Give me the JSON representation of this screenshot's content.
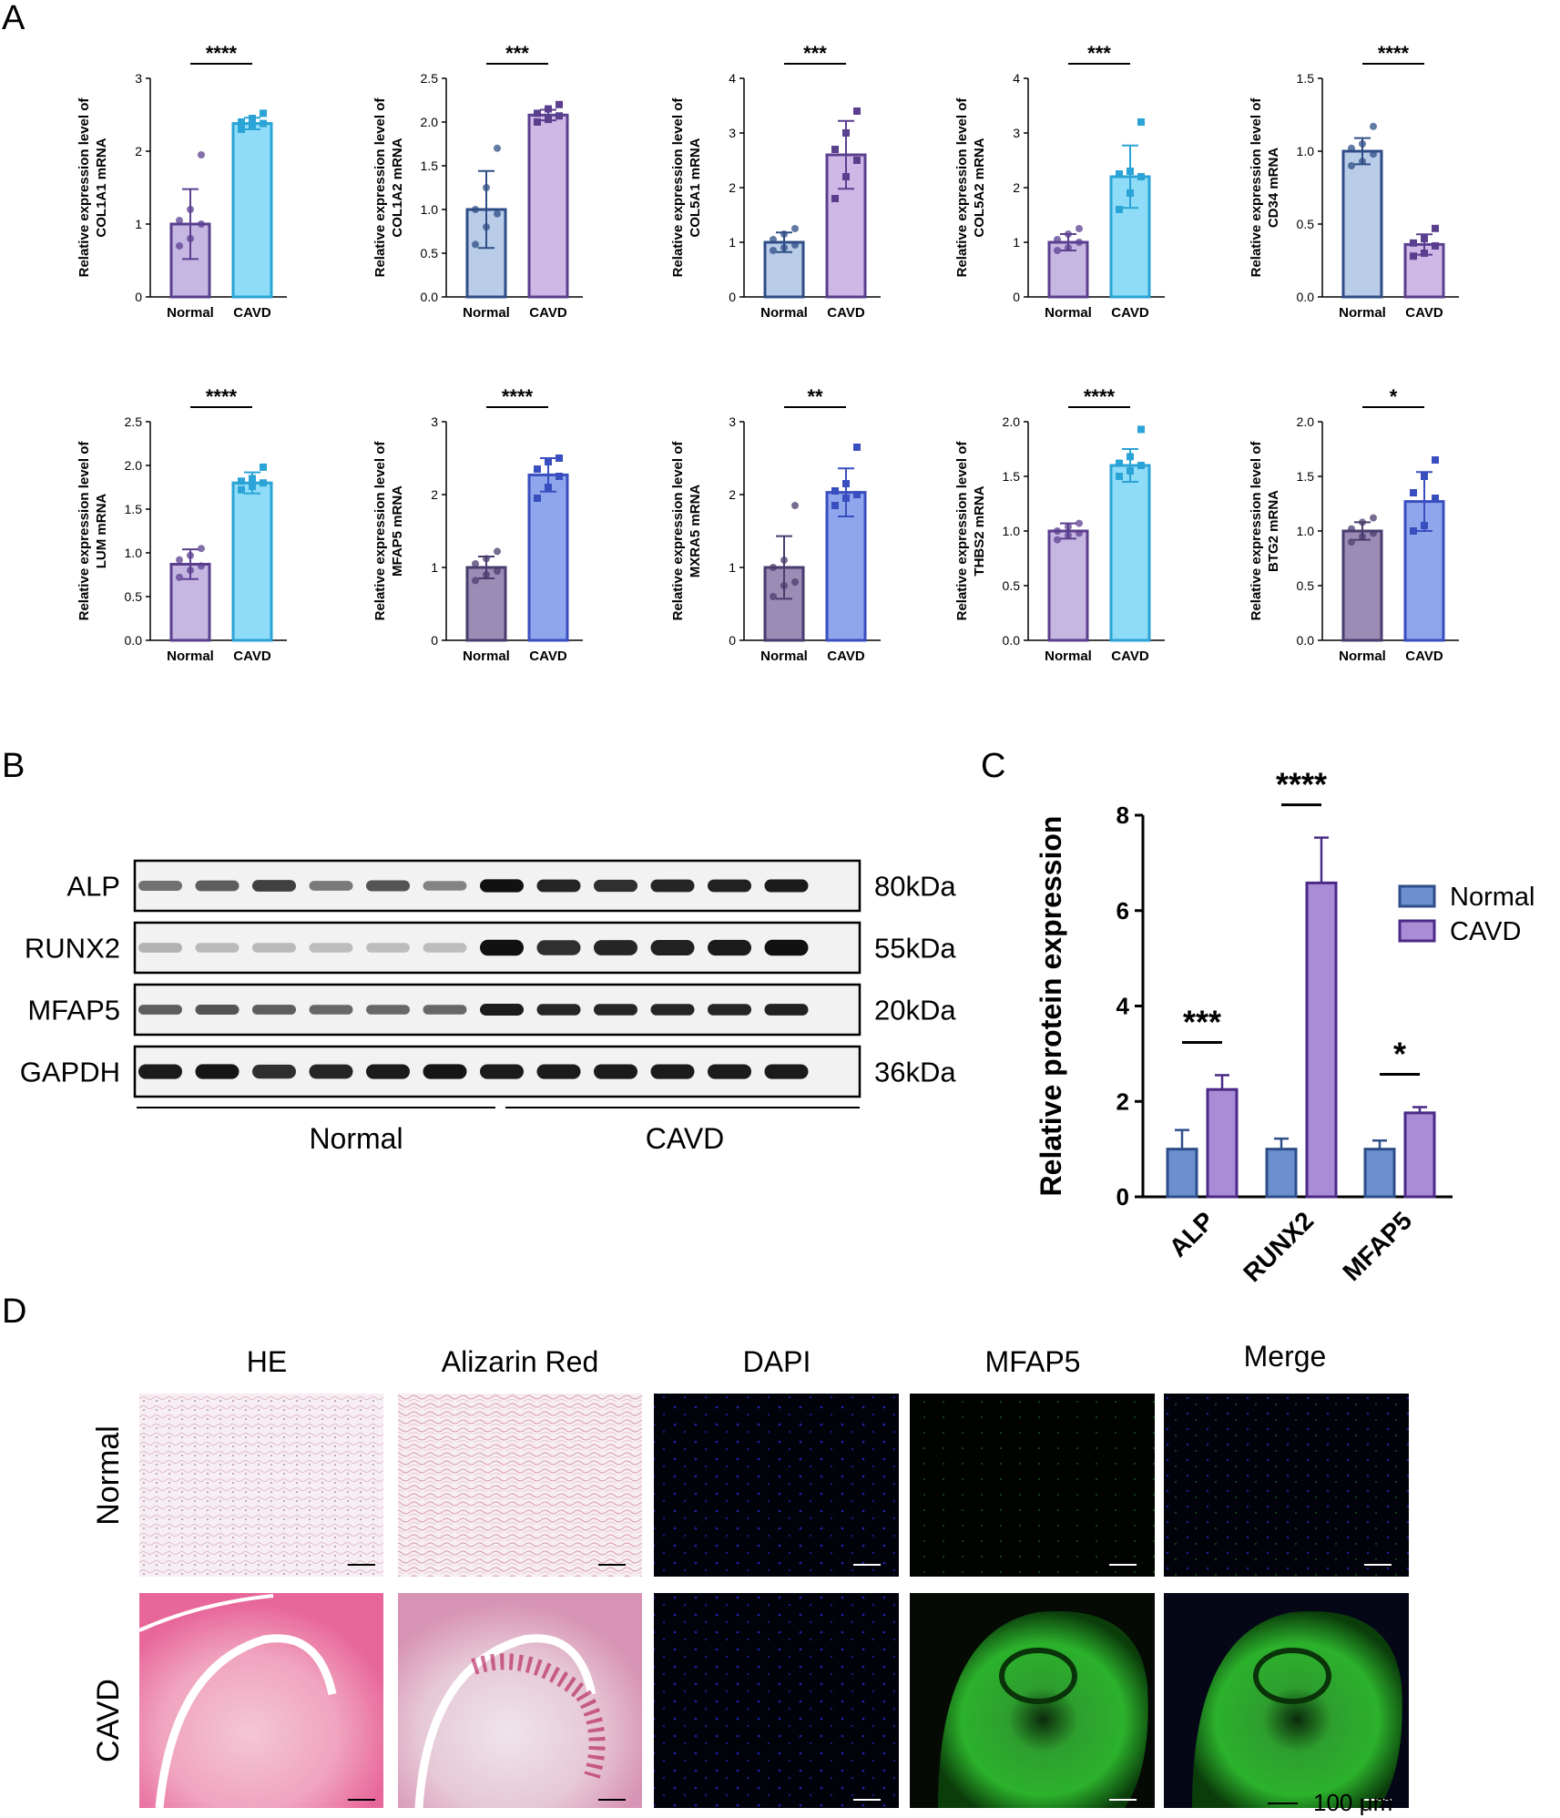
{
  "panels": {
    "A": "A",
    "B": "B",
    "C": "C",
    "D": "D"
  },
  "colors": {
    "normal_purple_fill": "#c6b7e2",
    "normal_purple_edge": "#5b3f8f",
    "normal_blue_fill": "#b9cce8",
    "normal_blue_edge": "#2f4d86",
    "normal_mauve_fill": "#9a8cb5",
    "normal_mauve_edge": "#4a3c6e",
    "cavd_cyan_fill": "#8fdcf8",
    "cavd_cyan_edge": "#2aa3d6",
    "cavd_lilac_fill": "#cdb8e6",
    "cavd_lilac_edge": "#5b3f8f",
    "cavd_periwinkle_fill": "#8fa5ec",
    "cavd_periwinkle_edge": "#3a4fbf",
    "bar_c_normal": "#6b8fcf",
    "bar_c_cavd": "#a98bd6",
    "green_stain": "#2fae2f",
    "he_pink": "#e65a8c",
    "dapi_blue": "#1b1fa8"
  },
  "chart_data": [
    {
      "type": "bar",
      "ylabel_line1": "Relative expression level of",
      "ylabel_line2": "COL1A1 mRNA",
      "ylim": [
        0,
        3
      ],
      "ticks": [
        "0",
        "1",
        "2",
        "3"
      ],
      "categories": [
        "Normal",
        "CAVD"
      ],
      "values": [
        1.0,
        2.38
      ],
      "errors": [
        0.48,
        0.08
      ],
      "significance": "****",
      "points": [
        [
          0.7,
          0.8,
          1.0,
          1.05,
          1.2,
          1.95
        ],
        [
          2.3,
          2.35,
          2.38,
          2.4,
          2.45,
          2.52
        ]
      ],
      "style": [
        "normal_purple",
        "cavd_cyan"
      ]
    },
    {
      "type": "bar",
      "ylabel_line1": "Relative expression level of",
      "ylabel_line2": "COL1A2 mRNA",
      "ylim": [
        0,
        2.5
      ],
      "ticks": [
        "0.0",
        "0.5",
        "1.0",
        "1.5",
        "2.0",
        "2.5"
      ],
      "categories": [
        "Normal",
        "CAVD"
      ],
      "values": [
        1.0,
        2.08
      ],
      "errors": [
        0.44,
        0.06
      ],
      "significance": "***",
      "points": [
        [
          0.6,
          0.8,
          0.95,
          1.0,
          1.25,
          1.7
        ],
        [
          2.0,
          2.03,
          2.07,
          2.1,
          2.15,
          2.2
        ]
      ],
      "style": [
        "normal_blue",
        "cavd_lilac"
      ]
    },
    {
      "type": "bar",
      "ylabel_line1": "Relative expression level of",
      "ylabel_line2": "COL5A1 mRNA",
      "ylim": [
        0,
        4
      ],
      "ticks": [
        "0",
        "1",
        "2",
        "3",
        "4"
      ],
      "categories": [
        "Normal",
        "CAVD"
      ],
      "values": [
        1.0,
        2.6
      ],
      "errors": [
        0.18,
        0.62
      ],
      "significance": "***",
      "points": [
        [
          0.85,
          0.9,
          0.95,
          1.05,
          1.15,
          1.25
        ],
        [
          1.8,
          2.2,
          2.5,
          2.7,
          3.0,
          3.4
        ]
      ],
      "style": [
        "normal_blue",
        "cavd_lilac"
      ]
    },
    {
      "type": "bar",
      "ylabel_line1": "Relative expression level of",
      "ylabel_line2": "COL5A2 mRNA",
      "ylim": [
        0,
        4
      ],
      "ticks": [
        "0",
        "1",
        "2",
        "3",
        "4"
      ],
      "categories": [
        "Normal",
        "CAVD"
      ],
      "values": [
        1.0,
        2.2
      ],
      "errors": [
        0.15,
        0.57
      ],
      "significance": "***",
      "points": [
        [
          0.85,
          0.9,
          1.0,
          1.05,
          1.15,
          1.25
        ],
        [
          1.6,
          1.9,
          2.2,
          2.25,
          2.3,
          3.2
        ]
      ],
      "style": [
        "normal_purple",
        "cavd_cyan"
      ]
    },
    {
      "type": "bar",
      "ylabel_line1": "Relative expression level of",
      "ylabel_line2": "CD34 mRNA",
      "ylim": [
        0,
        1.5
      ],
      "ticks": [
        "0.0",
        "0.5",
        "1.0",
        "1.5"
      ],
      "categories": [
        "Normal",
        "CAVD"
      ],
      "values": [
        1.0,
        0.36
      ],
      "errors": [
        0.09,
        0.07
      ],
      "significance": "****",
      "points": [
        [
          0.9,
          0.93,
          0.98,
          1.02,
          1.05,
          1.17
        ],
        [
          0.28,
          0.3,
          0.35,
          0.37,
          0.4,
          0.47
        ]
      ],
      "style": [
        "normal_blue",
        "cavd_lilac"
      ]
    },
    {
      "type": "bar",
      "ylabel_line1": "Relative expression level of",
      "ylabel_line2": "LUM mRNA",
      "ylim": [
        0,
        2.5
      ],
      "ticks": [
        "0.0",
        "0.5",
        "1.0",
        "1.5",
        "2.0",
        "2.5"
      ],
      "categories": [
        "Normal",
        "CAVD"
      ],
      "values": [
        0.87,
        1.8
      ],
      "errors": [
        0.17,
        0.12
      ],
      "significance": "****",
      "points": [
        [
          0.72,
          0.8,
          0.85,
          0.92,
          0.97,
          1.05
        ],
        [
          1.72,
          1.76,
          1.8,
          1.82,
          1.85,
          1.98
        ]
      ],
      "style": [
        "normal_purple",
        "cavd_cyan"
      ]
    },
    {
      "type": "bar",
      "ylabel_line1": "Relative expression level of",
      "ylabel_line2": "MFAP5 mRNA",
      "ylim": [
        0,
        3
      ],
      "ticks": [
        "0",
        "1",
        "2",
        "3"
      ],
      "categories": [
        "Normal",
        "CAVD"
      ],
      "values": [
        1.0,
        2.27
      ],
      "errors": [
        0.15,
        0.23
      ],
      "significance": "****",
      "points": [
        [
          0.82,
          0.9,
          0.95,
          1.05,
          1.12,
          1.22
        ],
        [
          1.95,
          2.1,
          2.25,
          2.35,
          2.45,
          2.5
        ]
      ],
      "style": [
        "normal_mauve",
        "cavd_periwinkle"
      ]
    },
    {
      "type": "bar",
      "ylabel_line1": "Relative expression level of",
      "ylabel_line2": "MXRA5 mRNA",
      "ylim": [
        0,
        3
      ],
      "ticks": [
        "0",
        "1",
        "2",
        "3"
      ],
      "categories": [
        "Normal",
        "CAVD"
      ],
      "values": [
        1.0,
        2.03
      ],
      "errors": [
        0.43,
        0.33
      ],
      "significance": "**",
      "points": [
        [
          0.6,
          0.75,
          0.8,
          1.0,
          1.1,
          1.85
        ],
        [
          1.85,
          1.95,
          2.0,
          2.05,
          2.15,
          2.65
        ]
      ],
      "style": [
        "normal_mauve",
        "cavd_periwinkle"
      ]
    },
    {
      "type": "bar",
      "ylabel_line1": "Relative expression level of",
      "ylabel_line2": "THBS2 mRNA",
      "ylim": [
        0,
        2.0
      ],
      "ticks": [
        "0.0",
        "0.5",
        "1.0",
        "1.5",
        "2.0"
      ],
      "categories": [
        "Normal",
        "CAVD"
      ],
      "values": [
        1.0,
        1.6
      ],
      "errors": [
        0.07,
        0.15
      ],
      "significance": "****",
      "points": [
        [
          0.92,
          0.96,
          0.98,
          1.0,
          1.04,
          1.07
        ],
        [
          1.5,
          1.55,
          1.6,
          1.62,
          1.68,
          1.93
        ]
      ],
      "style": [
        "normal_purple",
        "cavd_cyan"
      ]
    },
    {
      "type": "bar",
      "ylabel_line1": "Relative expression level of",
      "ylabel_line2": "BTG2 mRNA",
      "ylim": [
        0,
        2.0
      ],
      "ticks": [
        "0.0",
        "0.5",
        "1.0",
        "1.5",
        "2.0"
      ],
      "categories": [
        "Normal",
        "CAVD"
      ],
      "values": [
        1.0,
        1.27
      ],
      "errors": [
        0.08,
        0.27
      ],
      "significance": "*",
      "points": [
        [
          0.9,
          0.95,
          0.98,
          1.02,
          1.08,
          1.12
        ],
        [
          1.0,
          1.05,
          1.3,
          1.35,
          1.5,
          1.65
        ]
      ],
      "style": [
        "normal_mauve",
        "cavd_periwinkle"
      ]
    },
    {
      "type": "bar",
      "ylabel": "Relative protein expression",
      "ylim": [
        0,
        8
      ],
      "ticks": [
        "0",
        "2",
        "4",
        "6",
        "8"
      ],
      "categories": [
        "ALP",
        "RUNX2",
        "MFAP5"
      ],
      "series": [
        {
          "name": "Normal",
          "values": [
            1.0,
            1.0,
            1.0
          ],
          "errors": [
            0.4,
            0.22,
            0.18
          ]
        },
        {
          "name": "CAVD",
          "values": [
            2.25,
            6.58,
            1.76
          ],
          "errors": [
            0.3,
            0.95,
            0.12
          ]
        }
      ],
      "significance": [
        "***",
        "****",
        "*"
      ],
      "legend": "top-right"
    }
  ],
  "blot": {
    "proteins": [
      "ALP",
      "RUNX2",
      "MFAP5",
      "GAPDH"
    ],
    "sizes": [
      "80kDa",
      "55kDa",
      "20kDa",
      "36kDa"
    ],
    "groups": [
      "Normal",
      "CAVD"
    ],
    "intensity": [
      [
        0.5,
        0.6,
        0.75,
        0.45,
        0.65,
        0.4,
        1.0,
        0.9,
        0.85,
        0.9,
        0.92,
        0.95
      ],
      [
        0.15,
        0.12,
        0.12,
        0.1,
        0.1,
        0.1,
        1.0,
        0.85,
        0.9,
        0.92,
        0.95,
        1.0
      ],
      [
        0.6,
        0.65,
        0.6,
        0.55,
        0.55,
        0.55,
        0.95,
        0.9,
        0.9,
        0.9,
        0.9,
        0.92
      ],
      [
        0.95,
        0.98,
        0.85,
        0.9,
        0.95,
        0.98,
        0.95,
        0.95,
        0.95,
        0.95,
        0.95,
        0.95
      ]
    ]
  },
  "histology": {
    "columns": [
      "HE",
      "Alizarin Red",
      "DAPI",
      "MFAP5",
      "Merge"
    ],
    "rows": [
      "Normal",
      "CAVD"
    ],
    "scale_bar": "100 μm"
  }
}
